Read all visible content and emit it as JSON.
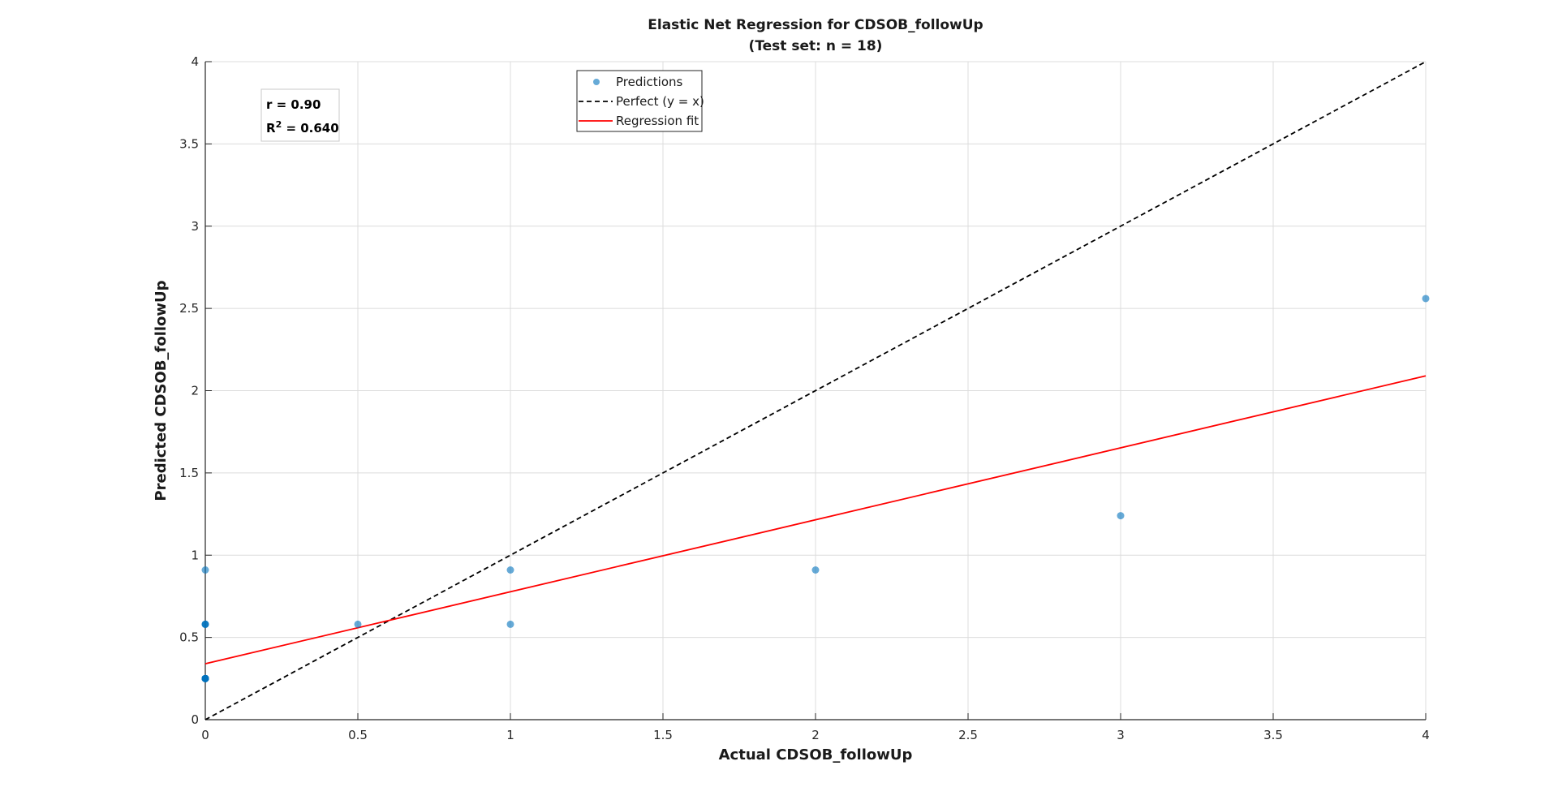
{
  "chart_data": {
    "type": "scatter",
    "title": "Elastic Net Regression for CDSOB_followUp",
    "subtitle": "(Test set: n = 18)",
    "xlabel": "Actual CDSOB_followUp",
    "ylabel": "Predicted CDSOB_followUp",
    "xlim": [
      0,
      4
    ],
    "ylim": [
      0,
      4
    ],
    "xticks": [
      "0",
      "0.5",
      "1",
      "1.5",
      "2",
      "2.5",
      "3",
      "3.5",
      "4"
    ],
    "yticks": [
      "0",
      "0.5",
      "1",
      "1.5",
      "2",
      "2.5",
      "3",
      "3.5",
      "4"
    ],
    "grid": true,
    "legend_placement": "top-center",
    "series": [
      {
        "name": "Predictions",
        "kind": "points",
        "color": "#0072BD",
        "points": [
          {
            "x": 0,
            "y": 0.91
          },
          {
            "x": 0,
            "y": 0.58
          },
          {
            "x": 0,
            "y": 0.58
          },
          {
            "x": 0,
            "y": 0.58
          },
          {
            "x": 0,
            "y": 0.25
          },
          {
            "x": 0,
            "y": 0.25
          },
          {
            "x": 0,
            "y": 0.25
          },
          {
            "x": 0,
            "y": 0.25
          },
          {
            "x": 0,
            "y": 0.25
          },
          {
            "x": 0,
            "y": 0.25
          },
          {
            "x": 0,
            "y": 0.25
          },
          {
            "x": 0,
            "y": 0.25
          },
          {
            "x": 0.5,
            "y": 0.58
          },
          {
            "x": 1,
            "y": 0.91
          },
          {
            "x": 1,
            "y": 0.58
          },
          {
            "x": 2,
            "y": 0.91
          },
          {
            "x": 3,
            "y": 1.24
          },
          {
            "x": 4,
            "y": 2.56
          }
        ]
      },
      {
        "name": "Perfect (y = x)",
        "kind": "dashed-line",
        "color": "#000000",
        "points": [
          {
            "x": 0,
            "y": 0
          },
          {
            "x": 4,
            "y": 4
          }
        ]
      },
      {
        "name": "Regression fit",
        "kind": "line",
        "color": "#FF0000",
        "points": [
          {
            "x": 0,
            "y": 0.34
          },
          {
            "x": 4,
            "y": 2.09
          }
        ]
      }
    ],
    "annotations": {
      "r_text": "r = 0.90",
      "r2_prefix": "R",
      "r2_sup": "2",
      "r2_value": " = 0.640"
    }
  }
}
